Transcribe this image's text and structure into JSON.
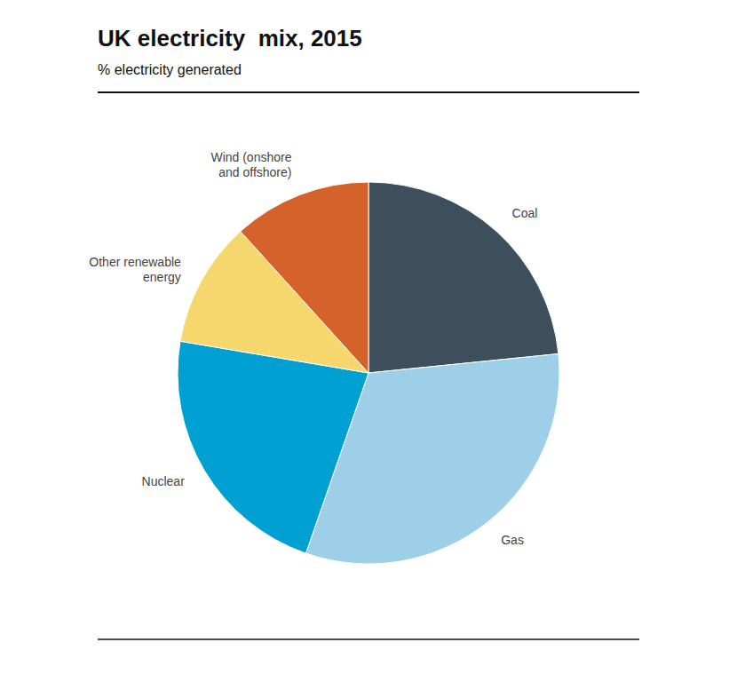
{
  "chart_data": {
    "type": "pie",
    "title": "UK electricity  mix, 2015",
    "subtitle": "% electricity generated",
    "categories": [
      "Coal",
      "Gas",
      "Nuclear",
      "Other renewable\nenergy",
      "Wind (onshore\nand offshore)"
    ],
    "values": [
      22,
      30,
      21,
      10,
      11
    ],
    "colors": [
      "#3d4f5c",
      "#9dcfe8",
      "#00a0d2",
      "#f5d76e",
      "#d4622a"
    ]
  }
}
